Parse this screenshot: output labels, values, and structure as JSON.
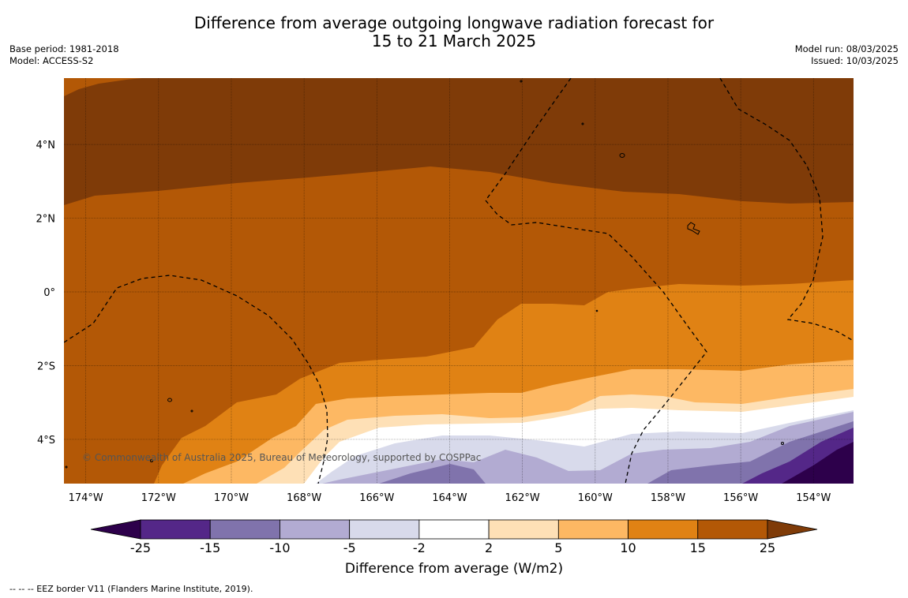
{
  "title": {
    "line1": "Difference from average outgoing longwave radiation forecast for",
    "line2": "15 to 21 March 2025"
  },
  "meta_left": {
    "base_period": "Base period: 1981-2018",
    "model": "Model: ACCESS-S2"
  },
  "meta_right": {
    "model_run": "Model run: 08/03/2025",
    "issued": "Issued: 10/03/2025"
  },
  "map": {
    "extent": {
      "lon_min": -174.6,
      "lon_max": -152.9,
      "lat_min": -5.2,
      "lat_max": 5.8
    },
    "y_ticks": [
      {
        "lat": 4,
        "label": "4°N"
      },
      {
        "lat": 2,
        "label": "2°N"
      },
      {
        "lat": 0,
        "label": "0°"
      },
      {
        "lat": -2,
        "label": "2°S"
      },
      {
        "lat": -4,
        "label": "4°S"
      }
    ],
    "x_ticks": [
      {
        "lon": -174,
        "label": "174°W"
      },
      {
        "lon": -172,
        "label": "172°W"
      },
      {
        "lon": -170,
        "label": "170°W"
      },
      {
        "lon": -168,
        "label": "168°W"
      },
      {
        "lon": -166,
        "label": "166°W"
      },
      {
        "lon": -164,
        "label": "164°W"
      },
      {
        "lon": -162,
        "label": "162°W"
      },
      {
        "lon": -160,
        "label": "160°W"
      },
      {
        "lon": -158,
        "label": "158°W"
      },
      {
        "lon": -156,
        "label": "156°W"
      },
      {
        "lon": -154,
        "label": "154°W"
      }
    ],
    "credit": "© Commonwealth of Australia 2025, Bureau of Meteorology, supported by COSPPac"
  },
  "colorbar": {
    "label": "Difference from average (W/m2)",
    "ticks": [
      "-25",
      "-15",
      "-10",
      "-5",
      "-2",
      "2",
      "5",
      "10",
      "15",
      "25"
    ],
    "colors": {
      "under": "#2d004b",
      "bins": [
        "#542788",
        "#8073ac",
        "#b2abd2",
        "#d8daeb",
        "#ffffff",
        "#fee0b6",
        "#fdb863",
        "#e08214",
        "#b35806"
      ],
      "over": "#7f3b08"
    }
  },
  "footer": "--  --  -- EEZ border V11 (Flanders Marine Institute, 2019)."
}
